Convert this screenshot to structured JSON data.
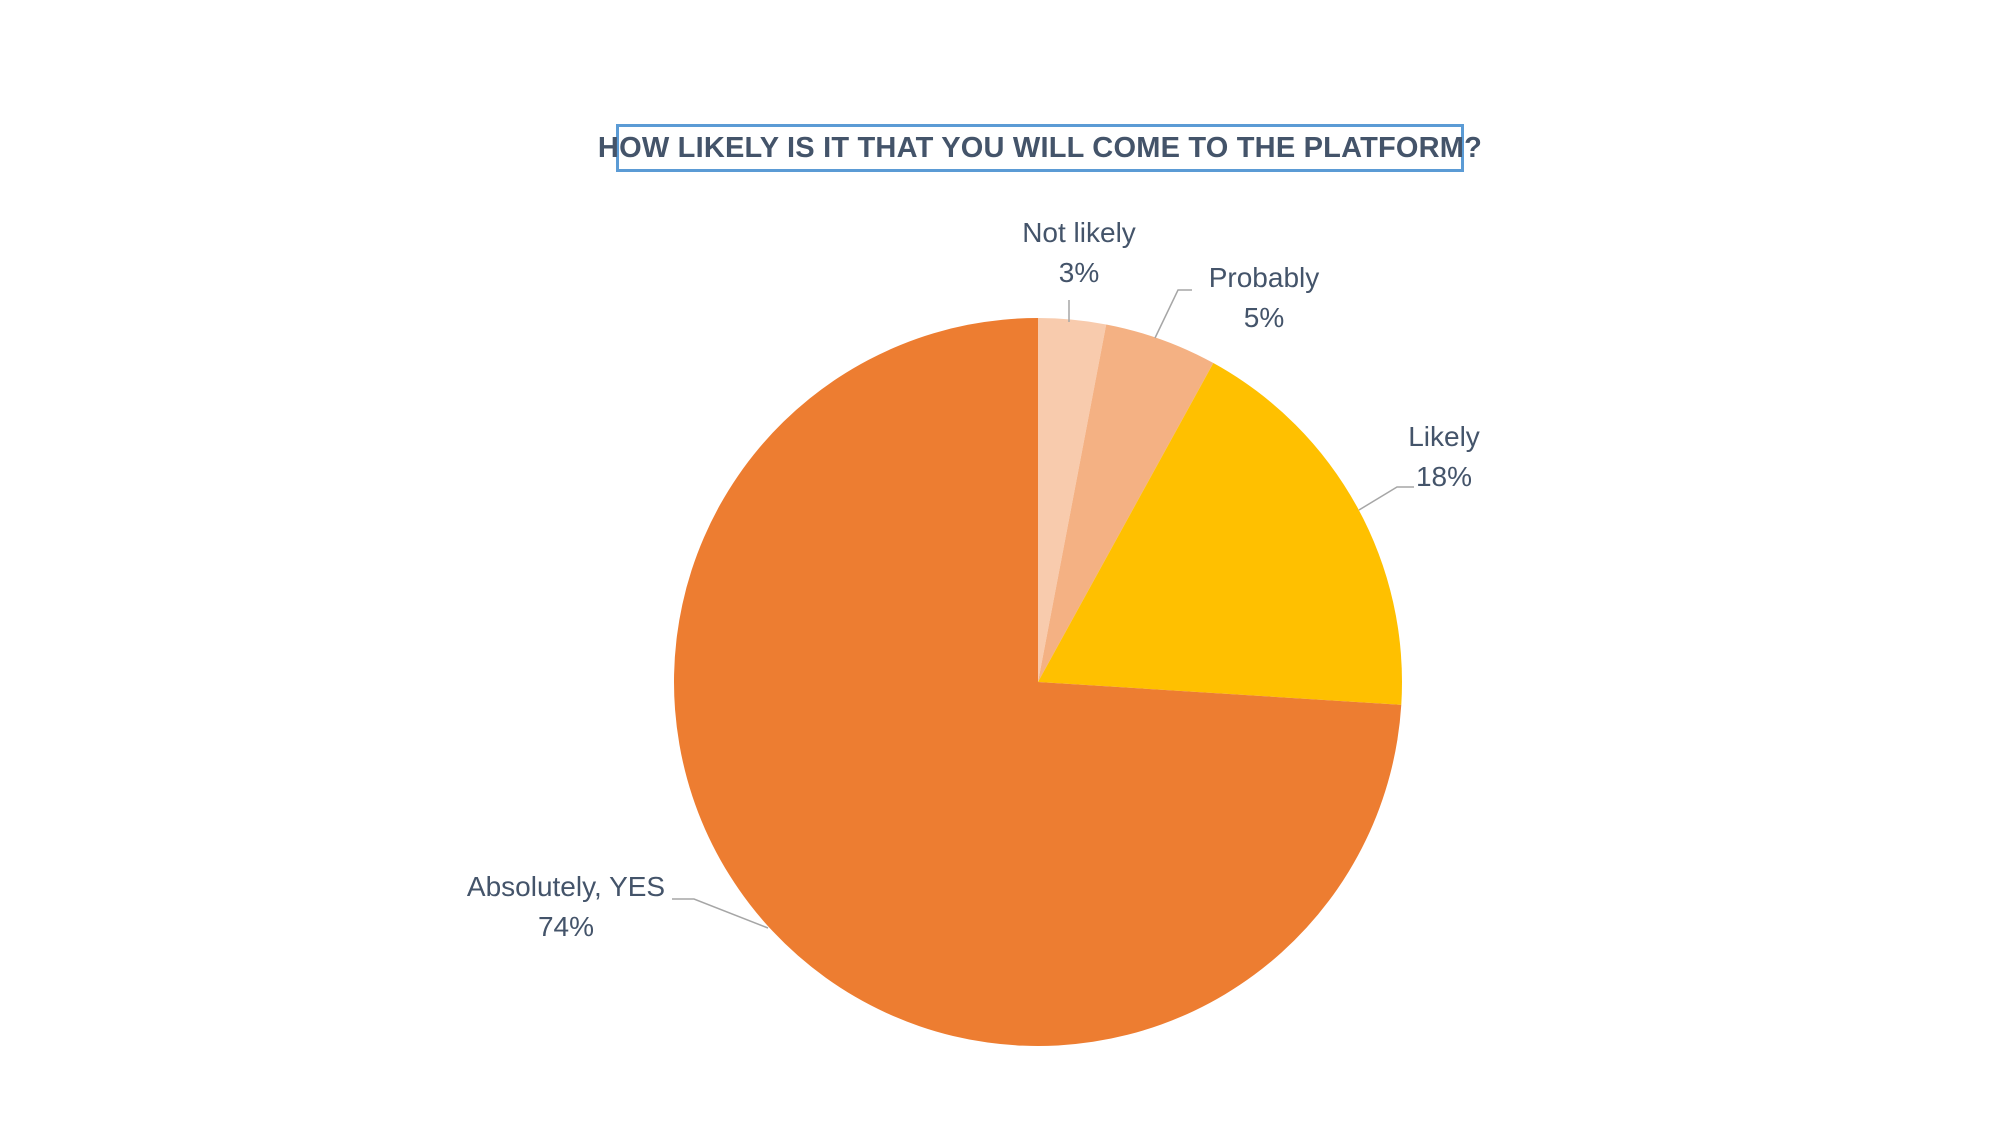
{
  "chart_data": {
    "type": "pie",
    "title": "HOW LIKELY IS IT THAT YOU WILL COME TO THE PLATFORM?",
    "slices": [
      {
        "label": "Not likely",
        "value": 3,
        "display": "3%",
        "color": "#f8cbad"
      },
      {
        "label": "Probably",
        "value": 5,
        "display": "5%",
        "color": "#f4b183"
      },
      {
        "label": "Likely",
        "value": 18,
        "display": "18%",
        "color": "#ffc000"
      },
      {
        "label": "Absolutely, YES",
        "value": 74,
        "display": "74%",
        "color": "#ed7d31"
      }
    ],
    "start_angle": "12 o'clock",
    "direction": "clockwise",
    "data_labels": "outside with leader lines",
    "label_color": "#44546a",
    "leader_color": "#a6a6a6"
  }
}
